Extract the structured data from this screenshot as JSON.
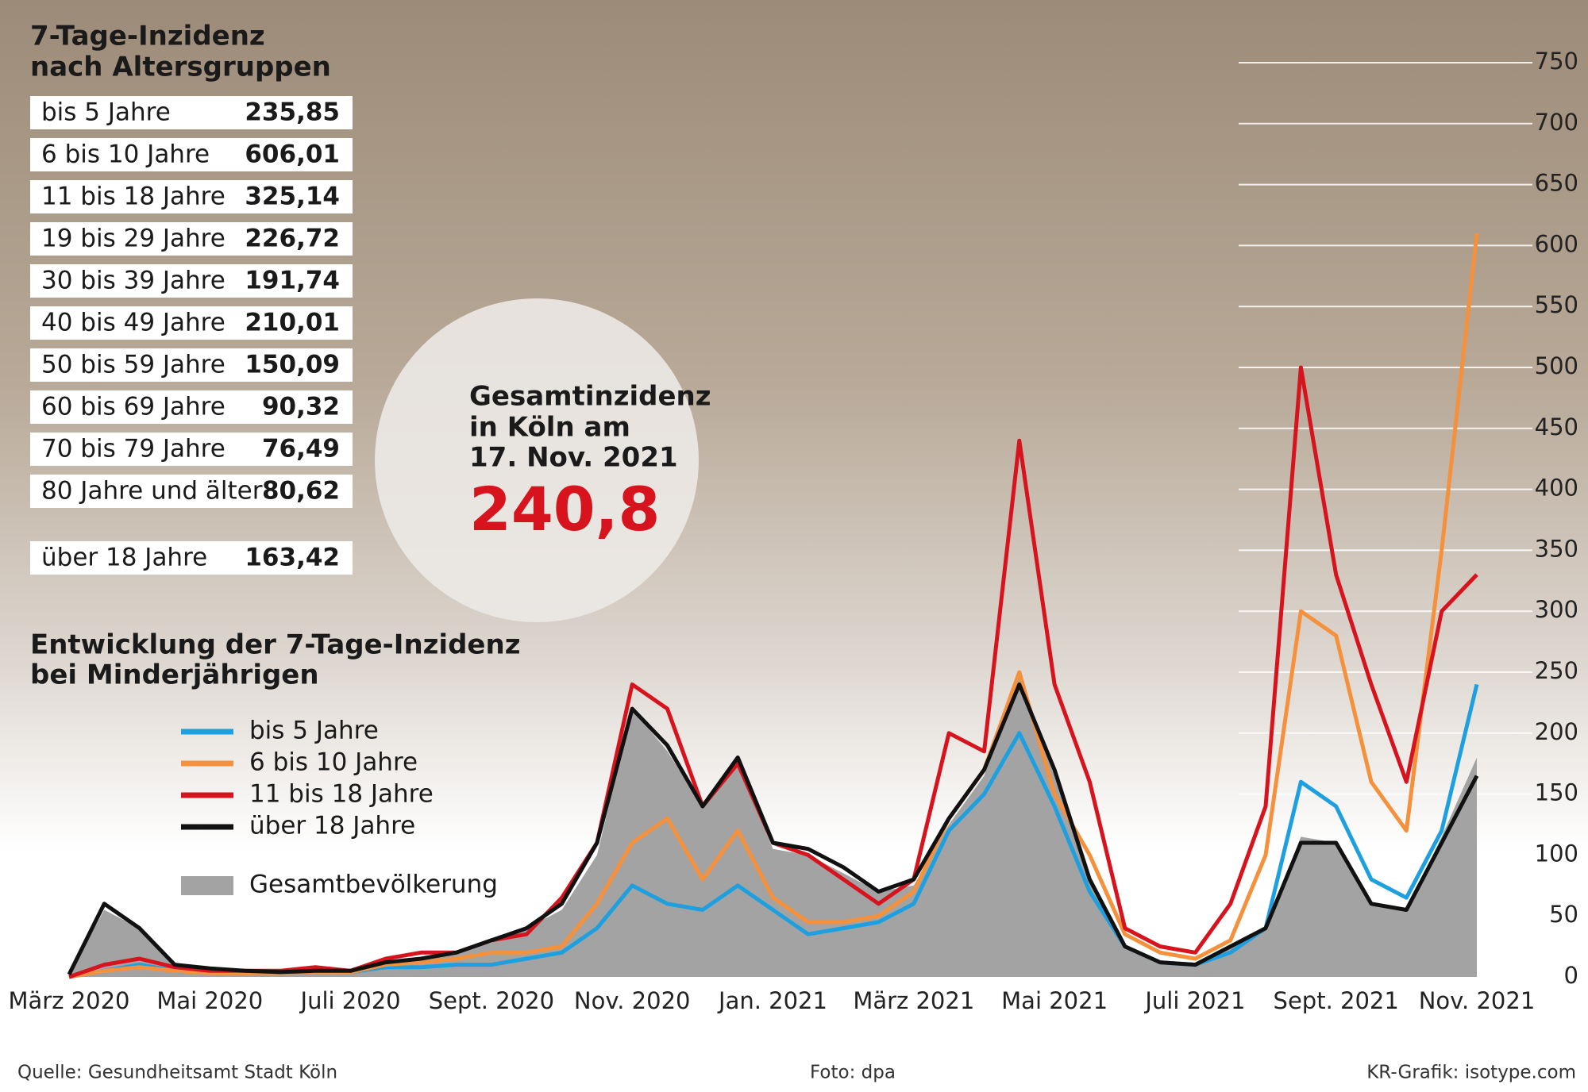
{
  "table": {
    "title": [
      "7-Tage-Inzidenz",
      "nach Altersgruppen"
    ],
    "rows": [
      [
        "bis 5 Jahre",
        "235,85"
      ],
      [
        "6 bis 10 Jahre",
        "606,01"
      ],
      [
        "11 bis 18 Jahre",
        "325,14"
      ],
      [
        "19 bis 29 Jahre",
        "226,72"
      ],
      [
        "30 bis 39 Jahre",
        "191,74"
      ],
      [
        "40 bis 49 Jahre",
        "210,01"
      ],
      [
        "50 bis 59 Jahre",
        "150,09"
      ],
      [
        "60 bis 69 Jahre",
        "90,32"
      ],
      [
        "70 bis 79 Jahre",
        "76,49"
      ],
      [
        "80 Jahre und älter",
        "80,62"
      ]
    ],
    "total": [
      "über 18 Jahre",
      "163,42"
    ]
  },
  "highlight": {
    "lines": [
      "Gesamtinzidenz",
      "in Köln am",
      "17. Nov. 2021"
    ],
    "value": "240,8"
  },
  "chart_data": {
    "type": "line",
    "title": [
      "Entwicklung der 7-Tage-Inzidenz",
      "bei Minderjährigen"
    ],
    "categories": [
      "März 2020",
      null,
      null,
      null,
      "Mai 2020",
      null,
      null,
      null,
      "Juli 2020",
      null,
      null,
      null,
      "Sept. 2020",
      null,
      null,
      null,
      "Nov. 2020",
      null,
      null,
      null,
      "Jan. 2021",
      null,
      null,
      null,
      "März 2021",
      null,
      null,
      null,
      "Mai 2021",
      null,
      null,
      null,
      "Juli 2021",
      null,
      null,
      null,
      "Sept. 2021",
      null,
      null,
      null,
      "Nov. 2021"
    ],
    "ylim": [
      0,
      750
    ],
    "yticks": [
      0,
      50,
      100,
      150,
      200,
      250,
      300,
      350,
      400,
      450,
      500,
      550,
      600,
      650,
      700,
      750
    ],
    "grid": true,
    "series": [
      {
        "name": "Gesamtbevölkerung",
        "color": "#a3a3a3",
        "style": "area",
        "values": [
          2,
          55,
          40,
          10,
          7,
          5,
          4,
          5,
          5,
          10,
          15,
          20,
          28,
          40,
          55,
          100,
          220,
          185,
          140,
          175,
          105,
          100,
          85,
          70,
          75,
          125,
          165,
          250,
          165,
          80,
          25,
          12,
          10,
          25,
          40,
          115,
          110,
          60,
          55,
          115,
          180
        ]
      },
      {
        "name": "bis 5 Jahre",
        "color": "#1ea0e0",
        "values": [
          0,
          5,
          10,
          5,
          3,
          3,
          3,
          4,
          4,
          8,
          8,
          10,
          10,
          15,
          20,
          40,
          75,
          60,
          55,
          75,
          55,
          35,
          40,
          45,
          60,
          120,
          150,
          200,
          140,
          70,
          25,
          12,
          10,
          20,
          40,
          160,
          140,
          80,
          65,
          120,
          240
        ]
      },
      {
        "name": "6 bis 10 Jahre",
        "color": "#f5913c",
        "values": [
          0,
          5,
          8,
          5,
          3,
          3,
          3,
          4,
          4,
          10,
          12,
          15,
          20,
          20,
          25,
          60,
          110,
          130,
          80,
          120,
          65,
          45,
          45,
          50,
          70,
          130,
          170,
          250,
          150,
          100,
          35,
          20,
          15,
          30,
          100,
          300,
          280,
          160,
          120,
          350,
          610
        ]
      },
      {
        "name": "11 bis 18 Jahre",
        "color": "#d7141e",
        "values": [
          0,
          10,
          15,
          8,
          5,
          5,
          5,
          8,
          5,
          15,
          20,
          20,
          30,
          35,
          65,
          110,
          240,
          220,
          140,
          175,
          110,
          100,
          80,
          60,
          80,
          200,
          185,
          440,
          240,
          160,
          40,
          25,
          20,
          60,
          140,
          500,
          330,
          240,
          160,
          300,
          330
        ]
      },
      {
        "name": "über 18 Jahre",
        "color": "#111111",
        "values": [
          2,
          60,
          40,
          10,
          7,
          5,
          4,
          5,
          5,
          12,
          15,
          20,
          30,
          40,
          60,
          110,
          220,
          190,
          140,
          180,
          110,
          105,
          90,
          70,
          80,
          130,
          170,
          240,
          170,
          80,
          25,
          12,
          10,
          25,
          40,
          110,
          110,
          60,
          55,
          110,
          165
        ]
      }
    ]
  },
  "footer": {
    "source": "Quelle: Gesundheitsamt Stadt Köln",
    "photo": "Foto: dpa",
    "credit": "KR-Grafik: isotype.com"
  }
}
